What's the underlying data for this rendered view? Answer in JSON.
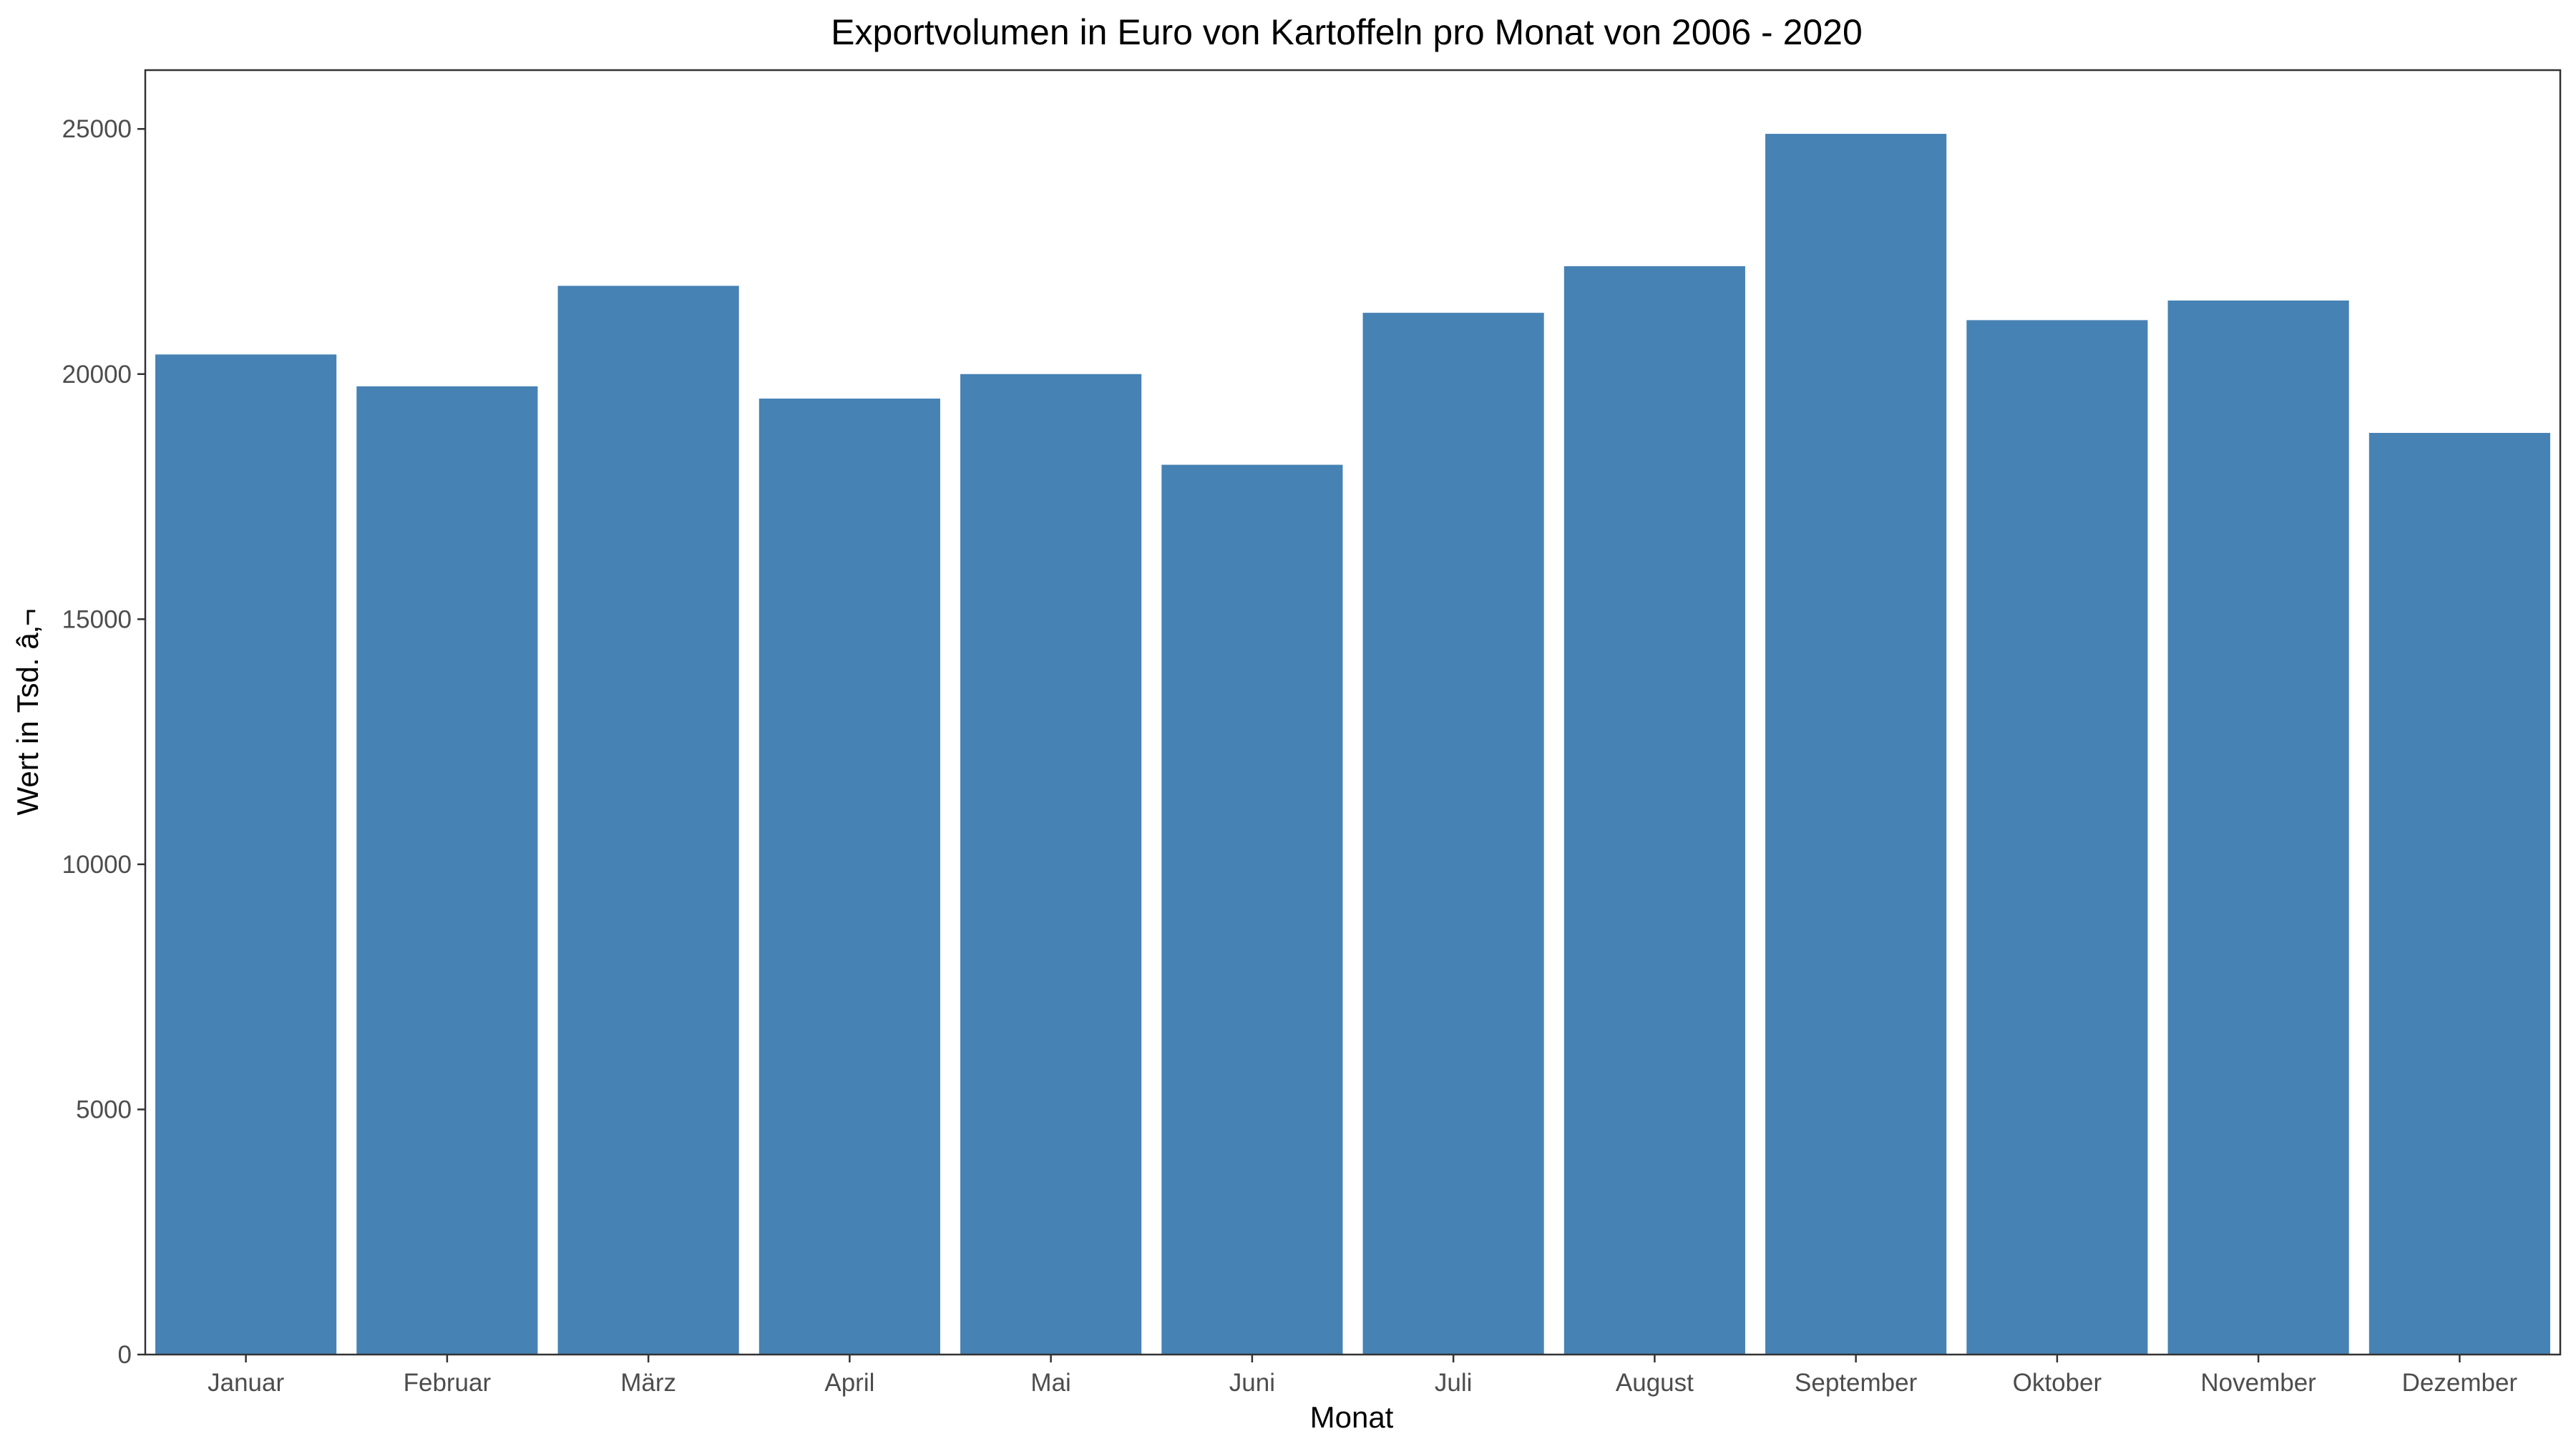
{
  "chart_data": {
    "type": "bar",
    "title": "Exportvolumen in Euro von Kartoffeln pro Monat von 2006 - 2020",
    "xlabel": "Monat",
    "ylabel": "Wert in Tsd. â‚¬",
    "categories": [
      "Januar",
      "Februar",
      "März",
      "April",
      "Mai",
      "Juni",
      "Juli",
      "August",
      "September",
      "Oktober",
      "November",
      "Dezember"
    ],
    "values": [
      20400,
      19750,
      21800,
      19500,
      20000,
      18150,
      21250,
      22200,
      24900,
      21100,
      21500,
      18800
    ],
    "ylim": [
      0,
      26200
    ],
    "yticks": [
      0,
      5000,
      10000,
      15000,
      20000,
      25000
    ],
    "bar_color": "#4682b4",
    "grid": false,
    "legend": "none"
  }
}
